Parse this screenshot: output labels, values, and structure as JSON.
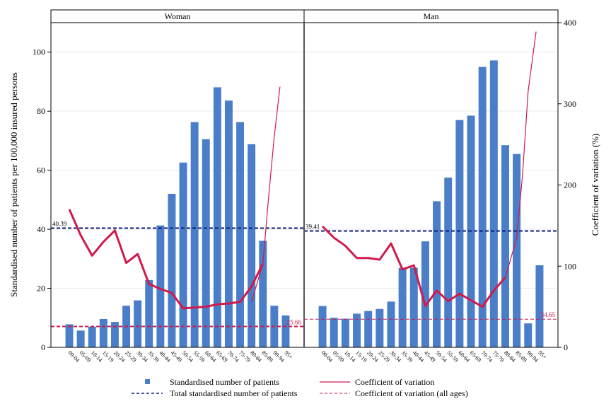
{
  "chart_data": {
    "type": "bar",
    "categories": [
      "00-04",
      "05-09",
      "10-14",
      "15-19",
      "20-24",
      "25-29",
      "30-34",
      "35-39",
      "40-44",
      "45-49",
      "50-54",
      "55-59",
      "60-64",
      "65-69",
      "70-74",
      "75-79",
      "80-84",
      "85-89",
      "90-94",
      "95+"
    ],
    "ylabel": "Standardised number of patients per 100,000 insured persons",
    "y2label": "Coefficient of variation (%)",
    "ylim": [
      0,
      110
    ],
    "y2lim": [
      0,
      400
    ],
    "yticks": [
      0,
      20,
      40,
      60,
      80,
      100
    ],
    "y2ticks": [
      0,
      100,
      200,
      300,
      400
    ],
    "grid": true,
    "legend_position": "bottom",
    "colors": {
      "bars": "#4a7ec8",
      "cv": "#d11a4a",
      "total": "#0c1e7a",
      "cv_all": "#d11a4a"
    },
    "legend": {
      "bars": "Standardised number of patients",
      "cv": "Coefficient of variation",
      "total": "Total standardised number of patients",
      "cv_all": "Coefficient of variation (all ages)"
    },
    "panels": [
      {
        "title": "Woman",
        "bars": [
          7.8,
          5.7,
          7.0,
          9.6,
          8.6,
          14.1,
          15.9,
          22.8,
          41.3,
          52.0,
          62.6,
          76.3,
          70.5,
          88.1,
          83.6,
          76.3,
          68.8,
          36.1,
          14.1,
          10.8
        ],
        "cv": [
          170,
          138,
          113,
          130,
          144,
          104,
          115,
          78,
          72,
          67,
          48,
          49,
          50,
          53,
          54,
          56,
          75,
          103,
          null,
          null
        ],
        "cv_tail": [
          [
            16,
            56
          ],
          [
            17,
            103
          ],
          [
            17.5,
            185
          ],
          [
            18,
            260
          ],
          [
            18.5,
            321
          ]
        ],
        "total": 40.39,
        "total_label": "40.39",
        "cv_all": 25.66,
        "cv_all_label": "25.66"
      },
      {
        "title": "Man",
        "bars": [
          14.0,
          10.0,
          9.7,
          11.4,
          12.3,
          13.0,
          15.5,
          26.9,
          27.0,
          35.9,
          49.5,
          57.5,
          77.0,
          78.5,
          95.0,
          97.2,
          68.5,
          65.5,
          8.1,
          27.8
        ],
        "cv": [
          149,
          135,
          125,
          110,
          110,
          108,
          128,
          96,
          101,
          51,
          70,
          57,
          66,
          58,
          50,
          70,
          86,
          null,
          null,
          null
        ],
        "cv_tail": [
          [
            16,
            86
          ],
          [
            16.5,
            110
          ],
          [
            17,
            135
          ],
          [
            17.5,
            210
          ],
          [
            18,
            315
          ],
          [
            18.7,
            389
          ]
        ],
        "total": 39.41,
        "total_label": "39.41",
        "cv_all": 34.65,
        "cv_all_label": "34.65"
      }
    ]
  }
}
